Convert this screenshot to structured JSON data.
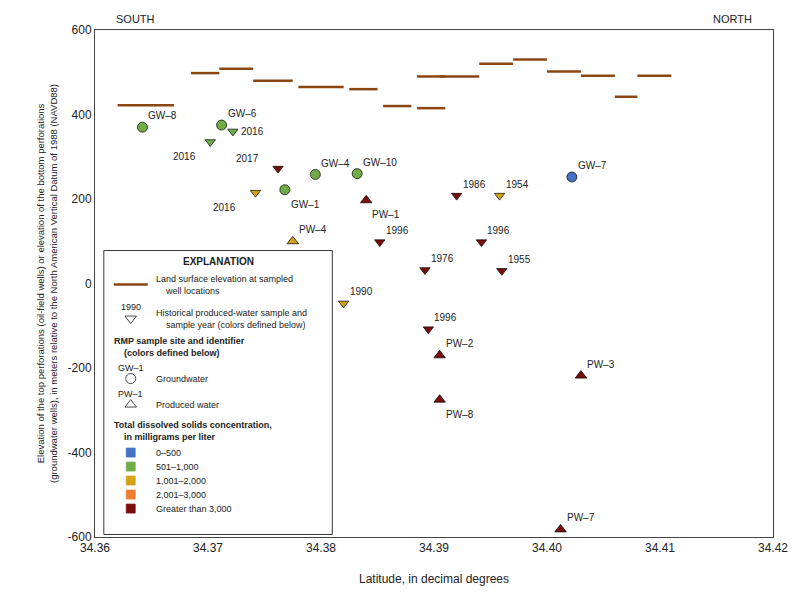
{
  "chart_data": {
    "type": "scatter",
    "xlabel": "Latitude, in decimal degrees",
    "ylabel": "Elevation of the top perforations (oil-field wells) or elevation of the bottom perforations\n(groundwater wells), in meters relative to the North American Vertical Datum of 1988 (NAVD88)",
    "xlim": [
      34.36,
      34.42
    ],
    "xticks": [
      34.36,
      34.37,
      34.38,
      34.39,
      {
        "value": 34.4,
        "label": "34.40"
      },
      34.41,
      34.42
    ],
    "ylim": [
      -600,
      600
    ],
    "yticks": [
      -600,
      -400,
      -200,
      0,
      200,
      400,
      600
    ],
    "grid": false,
    "annotations": [
      {
        "text": "SOUTH"
      },
      {
        "text": "NORTH"
      }
    ],
    "legend_title": "EXPLANATION",
    "land_surface": {
      "name": "Land surface elevation at sampled\n    well locations",
      "color": "#8B4513",
      "line_style": "solid",
      "segments": [
        {
          "x": [
            34.362,
            34.367
          ],
          "value": 422
        },
        {
          "x": [
            34.3685,
            34.371
          ],
          "value": 498
        },
        {
          "x": [
            34.371,
            34.374
          ],
          "value": 508
        },
        {
          "x": [
            34.374,
            34.3775
          ],
          "value": 480
        },
        {
          "x": [
            34.378,
            34.382
          ],
          "value": 465
        },
        {
          "x": [
            34.3825,
            34.385
          ],
          "value": 460
        },
        {
          "x": [
            34.3855,
            34.388
          ],
          "value": 420
        },
        {
          "x": [
            34.3885,
            34.391
          ],
          "value": 415
        },
        {
          "x": [
            34.3885,
            34.391
          ],
          "value": 490
        },
        {
          "x": [
            34.3905,
            34.394
          ],
          "value": 490
        },
        {
          "x": [
            34.394,
            34.397
          ],
          "value": 520
        },
        {
          "x": [
            34.397,
            34.4
          ],
          "value": 530
        },
        {
          "x": [
            34.4,
            34.403
          ],
          "value": 502
        },
        {
          "x": [
            34.403,
            34.406
          ],
          "value": 492
        },
        {
          "x": [
            34.406,
            34.408
          ],
          "value": 442
        },
        {
          "x": [
            34.408,
            34.411
          ],
          "value": 492
        }
      ]
    },
    "rmp": {
      "heading": "RMP sample site and identifier\n    (colors defined below)",
      "series": [
        {
          "name": "Groundwater",
          "sample_label": "GW–1",
          "marker": "circle",
          "labels": [
            "GW–8",
            "GW–6",
            "GW–4",
            "GW–1",
            "GW–10",
            "GW–7"
          ],
          "x": [
            34.3642,
            34.3712,
            34.3795,
            34.3768,
            34.3832,
            34.4022
          ],
          "values": [
            370,
            375,
            258,
            222,
            260,
            252
          ],
          "colors": [
            "#70AD47",
            "#70AD47",
            "#70AD47",
            "#70AD47",
            "#70AD47",
            "#4472C4"
          ]
        },
        {
          "name": "Produced water",
          "sample_label": "PW–1",
          "marker": "triangle-up",
          "labels": [
            "PW–1",
            "PW–4",
            "PW–2",
            "PW–8",
            "PW–3",
            "PW–7"
          ],
          "x": [
            34.384,
            34.3775,
            34.3905,
            34.3905,
            34.403,
            34.4012
          ],
          "values": [
            197,
            100,
            -170,
            -275,
            -218,
            -582
          ],
          "colors": [
            "#7B0D0D",
            "#D4A017",
            "#7B0D0D",
            "#7B0D0D",
            "#7B0D0D",
            "#7B0D0D"
          ]
        }
      ]
    },
    "historical": {
      "name": "Historical produced-water sample and\n    sample year (colors defined below)",
      "sample_label": "1990",
      "marker": "triangle-down",
      "labels": [
        "2016",
        "2016",
        "2017",
        "2016",
        "1990",
        "1996",
        "1976",
        "1996",
        "1986",
        "1996",
        "1955",
        "1954"
      ],
      "x": [
        34.3702,
        34.3722,
        34.3762,
        34.3742,
        34.382,
        34.3852,
        34.3892,
        34.3895,
        34.392,
        34.3942,
        34.396,
        34.3958
      ],
      "values": [
        335,
        360,
        272,
        215,
        -47,
        98,
        32,
        -108,
        208,
        98,
        30,
        208
      ],
      "colors": [
        "#70AD47",
        "#70AD47",
        "#7B0D0D",
        "#D4A017",
        "#D4A017",
        "#7B0D0D",
        "#7B0D0D",
        "#7B0D0D",
        "#7B0D0D",
        "#7B0D0D",
        "#7B0D0D",
        "#D4A017"
      ]
    },
    "tds_legend": {
      "heading": "Total dissolved solids concentration,\n    in milligrams per liter",
      "classes": [
        {
          "color": "#4472C4",
          "label": "0–500"
        },
        {
          "color": "#70AD47",
          "label": "501–1,000"
        },
        {
          "color": "#D4A017",
          "label": "1,001–2,000"
        },
        {
          "color": "#ED7D31",
          "label": "2,001–3,000"
        },
        {
          "color": "#7B0D0D",
          "label": "Greater than 3,000"
        }
      ]
    }
  }
}
